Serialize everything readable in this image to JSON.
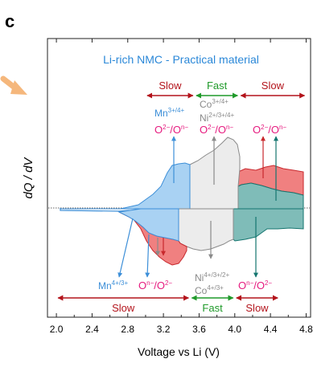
{
  "panel_label": "c",
  "chart_data": {
    "type": "area",
    "title": "Li-rich NMC - Practical material",
    "xlabel": "Voltage vs Li (V)",
    "ylabel": "dQ / dV",
    "xlim": [
      1.9,
      4.85
    ],
    "xticks": [
      "2.0",
      "2.4",
      "2.8",
      "3.2",
      "3.6",
      "4.0",
      "4.4",
      "4.8"
    ],
    "xtick_values": [
      2.0,
      2.4,
      2.8,
      3.2,
      3.6,
      4.0,
      4.4,
      4.8
    ],
    "grid": false,
    "colors": {
      "blue_fill": "#a9d2f3",
      "blue_line": "#3d8fd8",
      "grey_fill": "#ececec",
      "grey_line": "#8a8a8a",
      "red_fill": "#f08080",
      "red_line": "#c8282d",
      "teal_fill": "#7fbcb8",
      "teal_line": "#14756f",
      "magenta": "#e6197e",
      "green": "#1f9a2a",
      "dark_red": "#b3131b",
      "orange_arrow": "#f5b77c",
      "title_blue": "#2b88d8"
    },
    "regions": {
      "top": [
        {
          "label": "Slow",
          "from": 3.0,
          "to": 3.55,
          "color": "dark_red"
        },
        {
          "label": "Fast",
          "from": 3.55,
          "to": 4.05,
          "color": "green"
        },
        {
          "label": "Slow",
          "from": 4.05,
          "to": 4.8,
          "color": "dark_red"
        }
      ],
      "bottom": [
        {
          "label": "Slow",
          "from": 2.0,
          "to": 3.5,
          "color": "dark_red"
        },
        {
          "label": "Fast",
          "from": 3.5,
          "to": 4.0,
          "color": "green"
        },
        {
          "label": "Slow",
          "from": 4.0,
          "to": 4.5,
          "color": "dark_red"
        }
      ]
    },
    "labels": {
      "top_mn": "Mn",
      "top_mn_sup": "3+/4+",
      "top_co": "Co",
      "top_co_sup": "3+/4+",
      "top_ni": "Ni",
      "top_ni_sup": "2+/3+/4+",
      "redox_o": "O",
      "sup_2minus": "2−",
      "slash_o": "/O",
      "sup_nminus": "n−",
      "bot_mn": "Mn",
      "bot_mn_sup": "4+/3+",
      "bot_ni": "Ni",
      "bot_ni_sup": "4+/3+/2+",
      "bot_co": "Co",
      "bot_co_sup": "4+/3+"
    }
  }
}
